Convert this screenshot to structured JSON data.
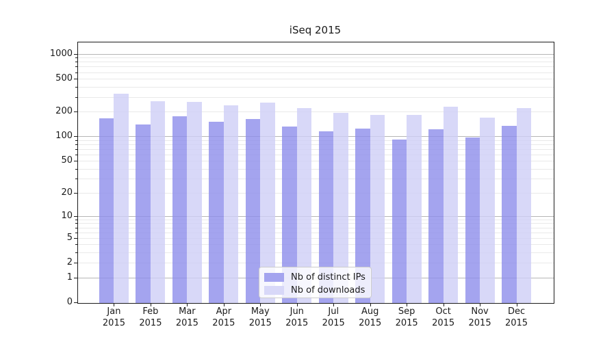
{
  "chart_data": {
    "type": "bar",
    "title": "iSeq 2015",
    "xlabel": "",
    "ylabel": "",
    "categories": [
      "Jan",
      "Feb",
      "Mar",
      "Apr",
      "May",
      "Jun",
      "Jul",
      "Aug",
      "Sep",
      "Oct",
      "Nov",
      "Dec"
    ],
    "category_year": "2015",
    "series": [
      {
        "name": "Nb of distinct IPs",
        "color": "#a4a4ef",
        "bar_rgba": "rgba(141,141,235,0.8)",
        "values": [
          168,
          141,
          179,
          154,
          167,
          133,
          118,
          126,
          93,
          124,
          98,
          136
        ]
      },
      {
        "name": "Nb of downloads",
        "color": "#d8d8f8",
        "bar_rgba": "rgba(206,206,246,0.8)",
        "values": [
          334,
          274,
          267,
          241,
          264,
          225,
          197,
          185,
          185,
          235,
          173,
          224
        ]
      }
    ],
    "y_axis": {
      "scale": "log1p",
      "tick_values": [
        0,
        1,
        2,
        5,
        10,
        20,
        50,
        100,
        200,
        500,
        1000
      ],
      "major_gridline_values": [
        1,
        10,
        100,
        1000
      ],
      "ylim": [
        0,
        1400
      ]
    },
    "grid": {
      "major_color": "#b5b5b5",
      "minor_color": "#e9e9e9",
      "on": true
    },
    "spine_color": "#1a1a1a",
    "legend": {
      "position": "lower center",
      "background": "rgba(255,255,255,0.8)",
      "border": "#cccccc"
    }
  }
}
